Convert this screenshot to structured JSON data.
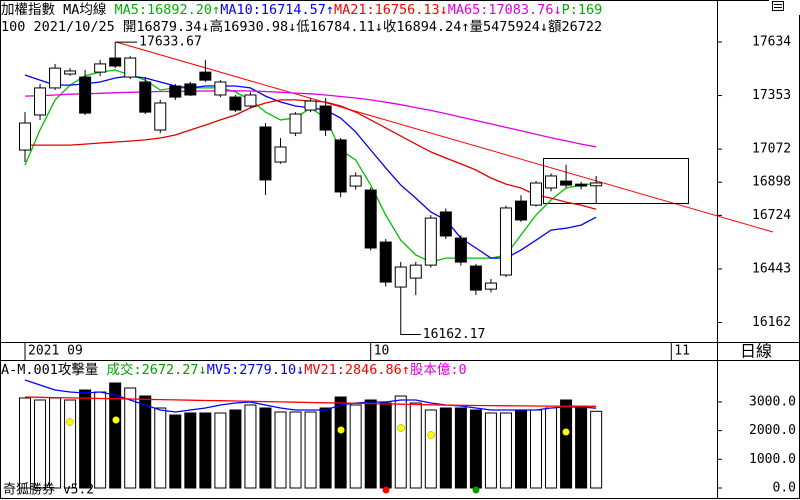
{
  "chart_data": {
    "type": "candlestick",
    "header": {
      "line1": [
        {
          "text": "加權指數 MA均線 ",
          "color": "#000000"
        },
        {
          "text": "MA5:16892.20↑",
          "color": "#00b000"
        },
        {
          "text": "MA10:16714.57↑",
          "color": "#0000ff"
        },
        {
          "text": "MA21:16756.13↓",
          "color": "#ff0000"
        },
        {
          "text": "MA65:17083.76↓",
          "color": "#e000e0"
        },
        {
          "text": "P:169",
          "color": "#00b000"
        }
      ],
      "line2": "100 2021/10/25 開16879.34↓高16930.98↓低16784.11↓收16894.24↑量5475924↓額26722"
    },
    "categories": [
      "2021 09",
      null,
      null,
      null,
      null,
      null,
      null,
      null,
      null,
      null,
      null,
      null,
      null,
      null,
      null,
      null,
      null,
      null,
      null,
      null,
      null,
      null,
      null,
      "10",
      null,
      null,
      null,
      null,
      null,
      null,
      null,
      null,
      null,
      null,
      null,
      null,
      null,
      null,
      null,
      null,
      null,
      null,
      null,
      "11",
      null,
      null
    ],
    "open": [
      17067,
      17251,
      17393,
      17466,
      17450,
      17476,
      17550,
      17450,
      17424,
      17172,
      17403,
      17414,
      17476,
      17356,
      17345,
      17298,
      17188,
      17004,
      17156,
      17277,
      17298,
      17120,
      16878,
      16857,
      16584,
      16348,
      16395,
      16463,
      16742,
      16605,
      16458,
      16337,
      16411,
      16799,
      16778,
      16868,
      16904,
      16888,
      16879.34,
      null,
      null,
      null,
      null,
      null,
      null,
      null
    ],
    "high": [
      17266,
      17414,
      17519,
      17497,
      17487,
      17540,
      17633.67,
      17560,
      17450,
      17330,
      17414,
      17424,
      17540,
      17434,
      17356,
      17370,
      17209,
      17130,
      17266,
      17340,
      17340,
      17130,
      16950,
      16870,
      16600,
      16480,
      16480,
      16725,
      16760,
      16620,
      16470,
      16390,
      16775,
      16830,
      16905,
      16945,
      16990,
      16900,
      16930.98,
      null,
      null,
      null,
      null,
      null,
      null,
      null
    ],
    "low": [
      17004,
      17225,
      17382,
      17456,
      17251,
      17456,
      17497,
      17440,
      17256,
      17156,
      17330,
      17350,
      17424,
      17345,
      17266,
      17290,
      16831,
      16995,
      17140,
      17266,
      17140,
      16820,
      16860,
      16540,
      16350,
      16162.17,
      16306,
      16450,
      16600,
      16460,
      16306,
      16320,
      16400,
      16690,
      16770,
      16850,
      16870,
      16860,
      16784.11,
      null,
      null,
      null,
      null,
      null,
      null,
      null
    ],
    "close": [
      17209,
      17393,
      17497,
      17482,
      17261,
      17519,
      17508,
      17550,
      17266,
      17314,
      17345,
      17356,
      17434,
      17424,
      17277,
      17356,
      16910,
      17083,
      17256,
      17324,
      17172,
      16847,
      16931,
      16553,
      16374,
      16453,
      16463,
      16710,
      16616,
      16479,
      16332,
      16369,
      16763,
      16700,
      16894,
      16931,
      16883,
      16878,
      16894.24,
      null,
      null,
      null,
      null,
      null,
      null,
      null
    ],
    "up_color": "#ffffff",
    "down_color": "#000000",
    "ylim": [
      16070,
      17760
    ],
    "yticks": [
      17634,
      17353,
      17072,
      16898,
      16724,
      16443,
      16162
    ],
    "ma_lines": [
      {
        "color": "#00c000",
        "values": [
          16988,
          17172,
          17330,
          17408,
          17456,
          17476,
          17487,
          17461,
          17434,
          17382,
          17393,
          17393,
          17393,
          17393,
          17372,
          17330,
          17266,
          17225,
          17235,
          17288,
          17235,
          17067,
          17015,
          16883,
          16726,
          16594,
          16516,
          16479,
          16500,
          16500,
          16500,
          16500,
          16516,
          16621,
          16726,
          16805,
          16868,
          16883,
          16892.2,
          null,
          null,
          null,
          null,
          null,
          null,
          null
        ]
      },
      {
        "color": "#0000ff",
        "values": [
          17461,
          17434,
          17408,
          17408,
          17414,
          17424,
          17445,
          17456,
          17445,
          17424,
          17403,
          17393,
          17403,
          17403,
          17403,
          17393,
          17350,
          17319,
          17298,
          17288,
          17277,
          17235,
          17162,
          17067,
          16973,
          16883,
          16815,
          16742,
          16700,
          16605,
          16553,
          16500,
          16500,
          16542,
          16594,
          16647,
          16657,
          16673,
          16714.57,
          null,
          null,
          null,
          null,
          null,
          null,
          null
        ]
      },
      {
        "color": "#e00000",
        "values": [
          17093,
          17093,
          17093,
          17093,
          17098,
          17104,
          17109,
          17114,
          17120,
          17130,
          17146,
          17172,
          17198,
          17225,
          17251,
          17288,
          17314,
          17330,
          17330,
          17324,
          17319,
          17298,
          17266,
          17225,
          17183,
          17140,
          17098,
          17057,
          17025,
          16994,
          16962,
          16920,
          16888,
          16868,
          16831,
          16815,
          16794,
          16778,
          16756.13,
          null,
          null,
          null,
          null,
          null,
          null,
          null
        ]
      },
      {
        "color": "#e000e0",
        "values": [
          17350,
          17352,
          17356,
          17360,
          17362,
          17365,
          17368,
          17370,
          17372,
          17374,
          17375,
          17376,
          17377,
          17378,
          17378,
          17377,
          17374,
          17370,
          17366,
          17362,
          17356,
          17348,
          17340,
          17330,
          17318,
          17305,
          17290,
          17275,
          17258,
          17240,
          17222,
          17204,
          17186,
          17168,
          17150,
          17132,
          17115,
          17098,
          17083.76,
          null,
          null,
          null,
          null,
          null,
          null,
          null
        ]
      }
    ],
    "volume": {
      "header": [
        {
          "text": "A-M.001攻擊量 ",
          "color": "#000000"
        },
        {
          "text": "成交:2672.27↓",
          "color": "#00a000"
        },
        {
          "text": "MV5:2779.10↓",
          "color": "#0000ff"
        },
        {
          "text": "MV21:2846.86↑",
          "color": "#ff0000"
        },
        {
          "text": "股本億:0",
          "color": "#e000e0"
        }
      ],
      "values": [
        3136,
        3066,
        3136,
        3066,
        3414,
        3345,
        3658,
        3484,
        3205,
        2787,
        2543,
        2613,
        2613,
        2613,
        2718,
        2892,
        2787,
        2648,
        2648,
        2648,
        2787,
        3170,
        2892,
        3066,
        2961,
        3205,
        2961,
        2718,
        2787,
        2787,
        2718,
        2613,
        2613,
        2718,
        2718,
        2787,
        3066,
        2857,
        2672.27,
        null,
        null,
        null,
        null,
        null,
        null,
        null
      ],
      "lines": [
        {
          "color": "#0000ff",
          "values": [
            3763,
            3589,
            3414,
            3345,
            3310,
            3345,
            3240,
            3066,
            2892,
            2718,
            2648,
            2718,
            2787,
            2892,
            2961,
            2996,
            2892,
            2787,
            2718,
            2718,
            2718,
            2892,
            2961,
            2996,
            2996,
            3066,
            3066,
            2961,
            2892,
            2857,
            2787,
            2718,
            2718,
            2718,
            2718,
            2787,
            2822,
            2822,
            2779.1,
            null,
            null,
            null,
            null,
            null,
            null,
            null
          ]
        },
        {
          "color": "#ff0000",
          "values": [
            3170,
            3160,
            3150,
            3140,
            3130,
            3120,
            3110,
            3100,
            3090,
            3080,
            3070,
            3060,
            3050,
            3040,
            3030,
            3020,
            3010,
            3000,
            2990,
            2980,
            2970,
            2960,
            2950,
            2940,
            2930,
            2920,
            2910,
            2900,
            2890,
            2880,
            2875,
            2870,
            2865,
            2860,
            2857,
            2854,
            2851,
            2849,
            2846.86,
            null,
            null,
            null,
            null,
            null,
            null,
            null
          ]
        }
      ],
      "ylim": [
        0,
        4390
      ],
      "yticks": [
        {
          "value": 3000,
          "label": "3000.0"
        },
        {
          "value": 2000,
          "label": "2000.0"
        },
        {
          "value": 1000,
          "label": "1000.0"
        },
        {
          "value": 0,
          "label": "0.0"
        }
      ]
    },
    "period_label": "日線",
    "footer": "奇狐勝券 v5.2"
  }
}
